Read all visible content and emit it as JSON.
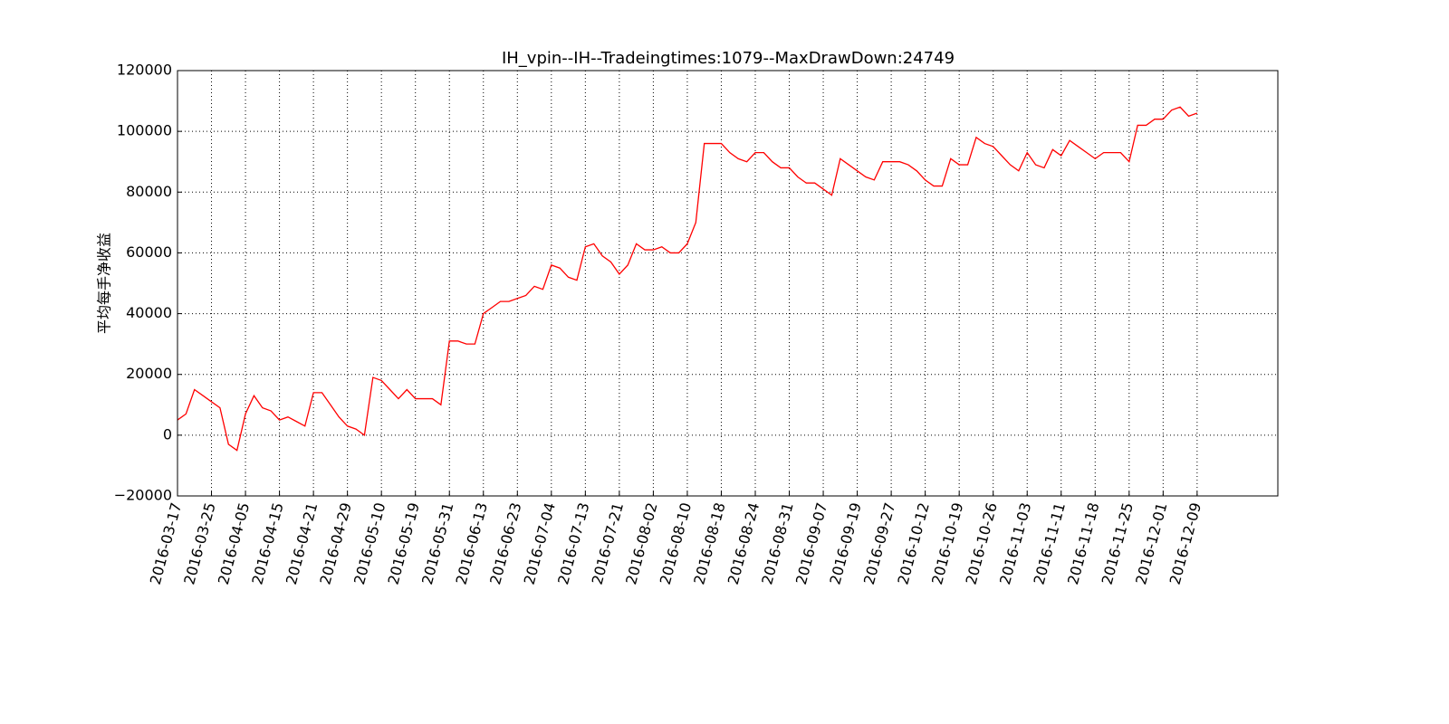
{
  "chart_data": {
    "type": "line",
    "title": "IH_vpin--IH--Tradeingtimes:1079--MaxDrawDown:24749",
    "y_label": "平均每手净收益",
    "categories": [
      "2016-03-17",
      null,
      null,
      null,
      "2016-03-25",
      null,
      null,
      null,
      "2016-04-05",
      null,
      null,
      null,
      "2016-04-15",
      null,
      null,
      null,
      "2016-04-21",
      null,
      null,
      null,
      "2016-04-29",
      null,
      null,
      null,
      "2016-05-10",
      null,
      null,
      null,
      "2016-05-19",
      null,
      null,
      null,
      "2016-05-31",
      null,
      null,
      null,
      "2016-06-13",
      null,
      null,
      null,
      "2016-06-23",
      null,
      null,
      null,
      "2016-07-04",
      null,
      null,
      null,
      "2016-07-13",
      null,
      null,
      null,
      "2016-07-21",
      null,
      null,
      null,
      "2016-08-02",
      null,
      null,
      null,
      "2016-08-10",
      null,
      null,
      null,
      "2016-08-18",
      null,
      null,
      null,
      "2016-08-24",
      null,
      null,
      null,
      "2016-08-31",
      null,
      null,
      null,
      "2016-09-07",
      null,
      null,
      null,
      "2016-09-19",
      null,
      null,
      null,
      "2016-09-27",
      null,
      null,
      null,
      "2016-10-12",
      null,
      null,
      null,
      "2016-10-19",
      null,
      null,
      null,
      "2016-10-26",
      null,
      null,
      null,
      "2016-11-03",
      null,
      null,
      null,
      "2016-11-11",
      null,
      null,
      null,
      "2016-11-18",
      null,
      null,
      null,
      "2016-11-25",
      null,
      null,
      null,
      "2016-12-01",
      null,
      null,
      null,
      "2016-12-09"
    ],
    "series": [
      {
        "color": "#ff0000",
        "values": [
          5000,
          7000,
          15000,
          13000,
          11000,
          9000,
          -3000,
          -5000,
          7000,
          13000,
          9000,
          8000,
          5000,
          6000,
          4500,
          3000,
          14000,
          14000,
          10000,
          6000,
          3000,
          2000,
          0,
          19000,
          18000,
          15000,
          12000,
          15000,
          12000,
          12000,
          12000,
          10000,
          31000,
          31000,
          30000,
          30000,
          40000,
          42000,
          44000,
          44000,
          45000,
          46000,
          49000,
          48000,
          56000,
          55000,
          52000,
          51000,
          62000,
          63000,
          59000,
          57000,
          53000,
          56000,
          63000,
          61000,
          61000,
          62000,
          60000,
          60000,
          63000,
          70000,
          96000,
          96000,
          96000,
          93000,
          91000,
          90000,
          93000,
          93000,
          90000,
          88000,
          88000,
          85000,
          83000,
          83000,
          81000,
          79000,
          91000,
          89000,
          87000,
          85000,
          84000,
          90000,
          90000,
          90000,
          89000,
          87000,
          84000,
          82000,
          82000,
          91000,
          89000,
          89000,
          98000,
          96000,
          95000,
          92000,
          89000,
          87000,
          93000,
          89000,
          88000,
          94000,
          92000,
          97000,
          95000,
          93000,
          91000,
          93000,
          93000,
          93000,
          90000,
          102000,
          102000,
          104000,
          104000,
          107000,
          108000,
          105000,
          106000
        ]
      }
    ],
    "xlim": [
      0,
      129.5
    ],
    "ylim": [
      -20000,
      120000
    ],
    "yticks": [
      {
        "value": -20000,
        "label": "−20000"
      },
      0,
      20000,
      40000,
      60000,
      80000,
      100000,
      120000
    ],
    "grid": true
  }
}
